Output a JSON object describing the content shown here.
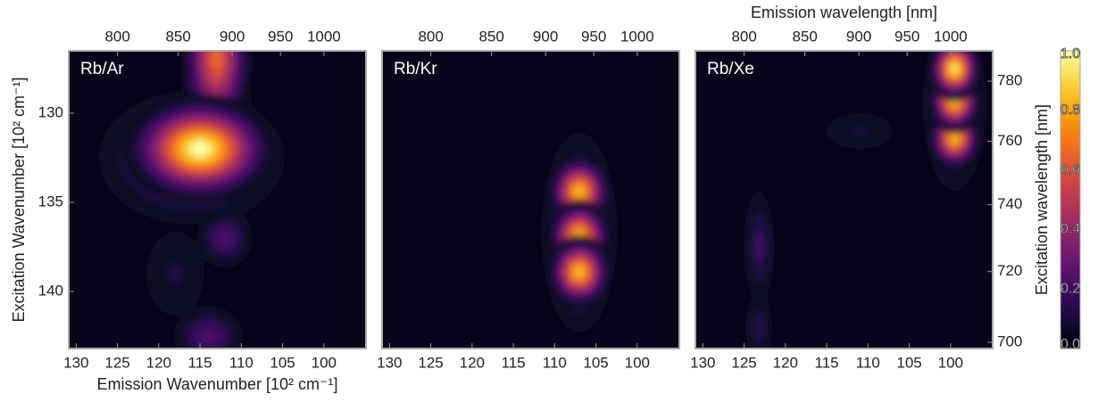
{
  "chart_data": [
    {
      "type": "heatmap",
      "label": "Rb/Ar",
      "xlabel": "Emission Wavenumber [10² cm⁻¹]",
      "ylabel": "Excitation Wavenumber [10² cm⁻¹]",
      "xlim": [
        130.9,
        94.9
      ],
      "xticks": [
        130,
        125,
        120,
        115,
        110,
        105,
        100
      ],
      "ylim": [
        143.2,
        126.5
      ],
      "yticks": [
        130,
        135,
        140
      ],
      "x2lim": [
        763.9,
        1053.7
      ],
      "x2ticks": [
        800,
        850,
        900,
        950,
        1000
      ],
      "x2scale": "reciprocal",
      "peaks": [
        {
          "x": 118,
          "y": 139,
          "sx": 3,
          "sy": 2,
          "value": 0.12
        },
        {
          "x": 112,
          "y": 137,
          "sx": 2,
          "sy": 1,
          "value": 0.25
        },
        {
          "x": 114,
          "y": 142.5,
          "sx": 2.5,
          "sy": 1,
          "value": 0.25
        },
        {
          "x": 116,
          "y": 132.5,
          "sx": 6,
          "sy": 2,
          "value": 0.35
        },
        {
          "x": 113,
          "y": 129,
          "sx": 2,
          "sy": 1.5,
          "value": 0.6
        },
        {
          "x": 113,
          "y": 127,
          "sx": 2,
          "sy": 2,
          "value": 0.65
        },
        {
          "x": 115,
          "y": 132,
          "sx": 4,
          "sy": 1.3,
          "value": 1.0
        }
      ]
    },
    {
      "type": "heatmap",
      "label": "Rb/Kr",
      "xlim": [
        130.9,
        94.9
      ],
      "xticks": [
        130,
        125,
        120,
        115,
        110,
        105,
        100
      ],
      "ylim": [
        143.2,
        126.5
      ],
      "x2lim": [
        763.9,
        1053.7
      ],
      "x2ticks": [
        800,
        850,
        900,
        950,
        1000
      ],
      "x2scale": "reciprocal",
      "peaks": [
        {
          "x": 107,
          "y": 136.7,
          "sx": 2.3,
          "sy": 2.8,
          "value": 0.45
        },
        {
          "x": 107,
          "y": 134.4,
          "sx": 1.7,
          "sy": 0.9,
          "value": 0.85
        },
        {
          "x": 107,
          "y": 136.9,
          "sx": 1.7,
          "sy": 0.9,
          "value": 0.85
        },
        {
          "x": 107,
          "y": 138.9,
          "sx": 1.7,
          "sy": 0.9,
          "value": 0.85
        }
      ]
    },
    {
      "type": "heatmap",
      "label": "Rb/Xe",
      "x2label": "Emission wavelength [nm]",
      "y2label": "Excitation wavelength [nm]",
      "xlim": [
        130.9,
        94.9
      ],
      "xticks": [
        130,
        125,
        120,
        115,
        110,
        105,
        100
      ],
      "ylim": [
        143.2,
        126.5
      ],
      "x2lim": [
        763.9,
        1053.7
      ],
      "x2ticks": [
        800,
        850,
        900,
        950,
        1000
      ],
      "x2scale": "reciprocal",
      "y2lim": [
        698.3,
        790.5
      ],
      "y2ticks": [
        700,
        720,
        740,
        760,
        780
      ],
      "y2scale": "reciprocal",
      "clim": [
        0,
        1
      ],
      "cticks": [
        {
          "value": 0,
          "label": "0.0"
        },
        0.2,
        0.4,
        0.6,
        0.8,
        {
          "value": 1,
          "label": "1.0"
        }
      ],
      "cmap": "inferno",
      "peaks": [
        {
          "x": 111,
          "y": 131,
          "sx": 4,
          "sy": 1,
          "value": 0.1
        },
        {
          "x": 123.2,
          "y": 142,
          "sx": 1.2,
          "sy": 1.5,
          "value": 0.15
        },
        {
          "x": 123.2,
          "y": 137.5,
          "sx": 1.2,
          "sy": 2,
          "value": 0.2
        },
        {
          "x": 99.5,
          "y": 129.5,
          "sx": 2,
          "sy": 2.5,
          "value": 0.4
        },
        {
          "x": 99.5,
          "y": 131.4,
          "sx": 1.4,
          "sy": 0.8,
          "value": 0.85
        },
        {
          "x": 99.5,
          "y": 129.3,
          "sx": 1.4,
          "sy": 0.8,
          "value": 0.9
        },
        {
          "x": 99.5,
          "y": 127.5,
          "sx": 1.4,
          "sy": 0.8,
          "value": 0.95
        }
      ]
    }
  ]
}
